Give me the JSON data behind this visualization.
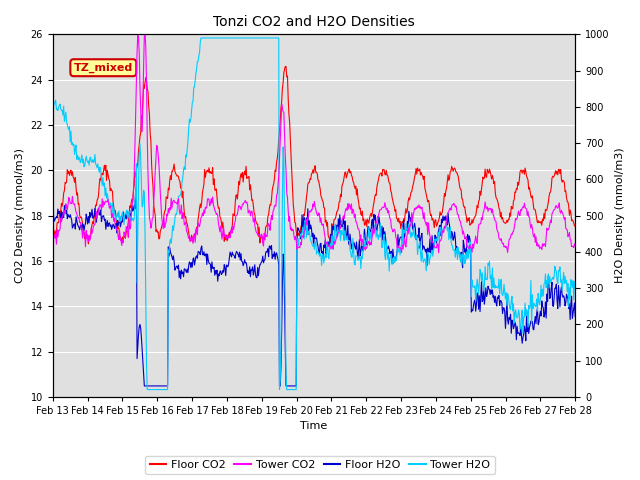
{
  "title": "Tonzi CO2 and H2O Densities",
  "xlabel": "Time",
  "ylabel_left": "CO2 Density (mmol/m3)",
  "ylabel_right": "H2O Density (mmol/m3)",
  "ylim_left": [
    10,
    26
  ],
  "ylim_right": [
    0,
    1000
  ],
  "xtick_labels": [
    "Feb 13",
    "Feb 14",
    "Feb 15",
    "Feb 16",
    "Feb 17",
    "Feb 18",
    "Feb 19",
    "Feb 20",
    "Feb 21",
    "Feb 22",
    "Feb 23",
    "Feb 24",
    "Feb 25",
    "Feb 26",
    "Feb 27",
    "Feb 28"
  ],
  "annotation_text": "TZ_mixed",
  "annotation_color": "#cc0000",
  "annotation_bg": "#ffff99",
  "bg_color": "#e0e0e0",
  "grid_color": "white",
  "floor_co2_color": "#ff0000",
  "tower_co2_color": "#ff00ff",
  "floor_h2o_color": "#0000cc",
  "tower_h2o_color": "#00ccff",
  "legend_labels": [
    "Floor CO2",
    "Tower CO2",
    "Floor H2O",
    "Tower H2O"
  ],
  "title_fontsize": 10,
  "axis_label_fontsize": 8,
  "tick_fontsize": 7,
  "legend_fontsize": 8
}
